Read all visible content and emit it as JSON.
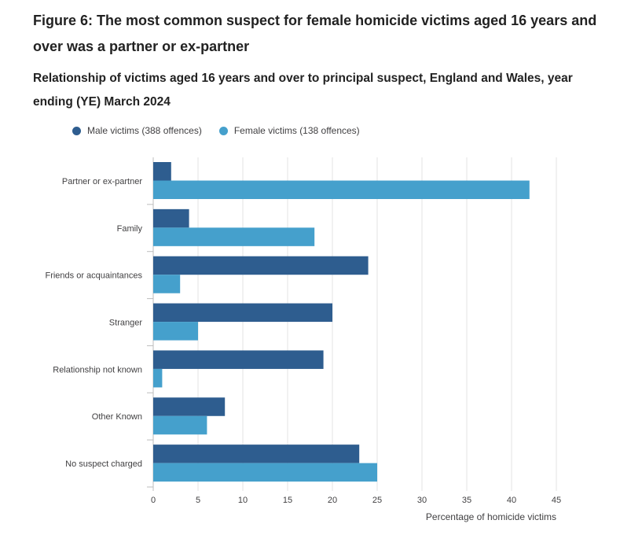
{
  "title": "Figure 6: The most common suspect for female homicide victims aged 16 years and over was a partner or ex-partner",
  "subtitle": "Relationship of victims aged 16 years and over to principal suspect, England and Wales, year ending (YE) March 2024",
  "colors": {
    "male": "#2e5d8f",
    "female": "#45a0cc",
    "grid": "#e3e3e3",
    "axis": "#bdbdbd",
    "text": "#414042"
  },
  "chart_data": {
    "type": "bar",
    "orientation": "horizontal",
    "categories": [
      "Partner or ex-partner",
      "Family",
      "Friends or acquaintances",
      "Stranger",
      "Relationship not known",
      "Other Known",
      "No suspect charged"
    ],
    "series": [
      {
        "name": "Male victims (388 offences)",
        "values": [
          2,
          4,
          24,
          20,
          19,
          8,
          23
        ]
      },
      {
        "name": "Female victims (138 offences)",
        "values": [
          42,
          18,
          3,
          5,
          1,
          6,
          25
        ]
      }
    ],
    "xlabel": "Percentage of homicide victims",
    "ylabel": "",
    "xlim": [
      0,
      45
    ],
    "xticks": [
      0,
      5,
      10,
      15,
      20,
      25,
      30,
      35,
      40,
      45
    ],
    "legend_position": "top-left",
    "grid": true
  }
}
